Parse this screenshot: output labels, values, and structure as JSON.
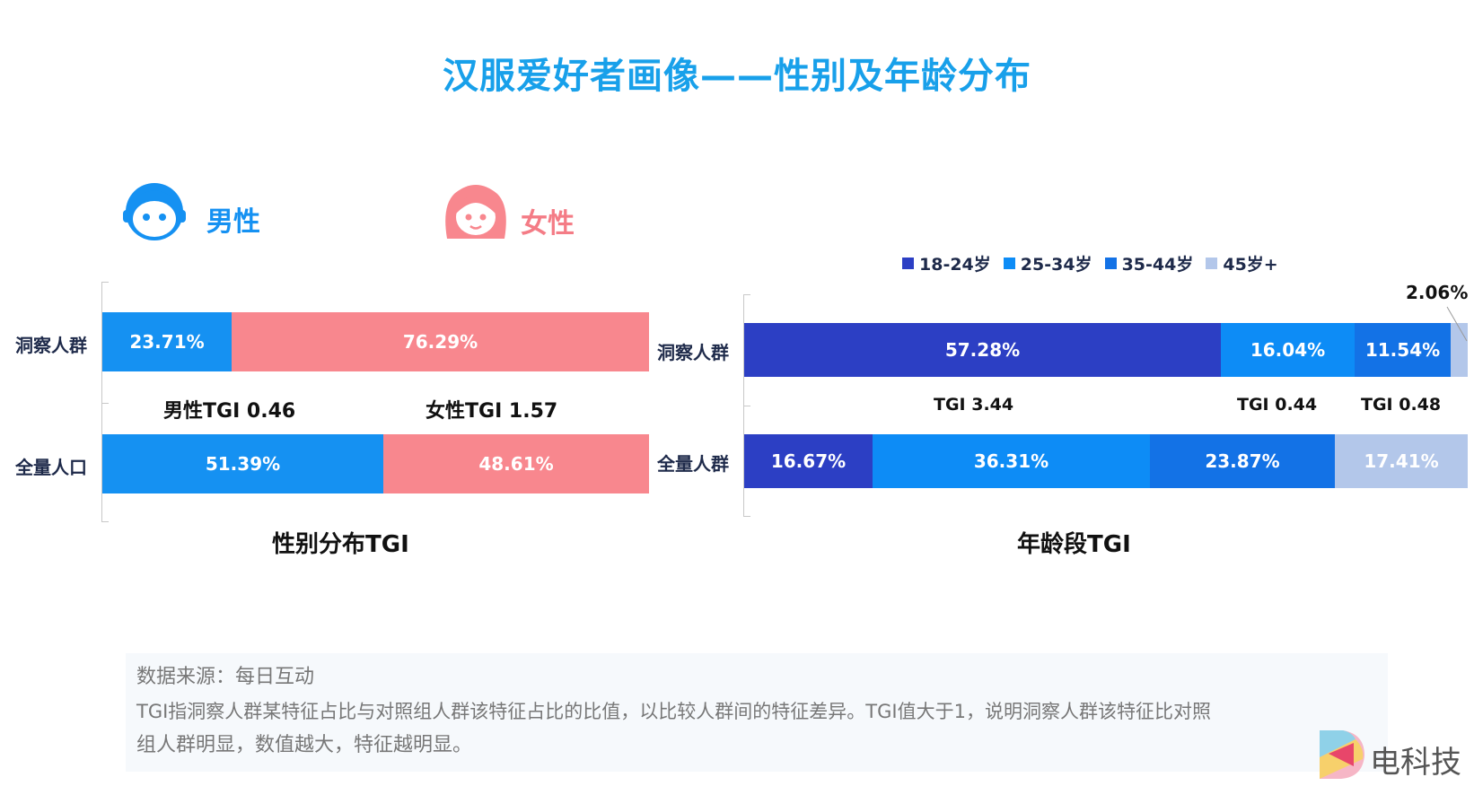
{
  "title": "汉服爱好者画像——性别及年龄分布",
  "gender_header": {
    "male_label": "男性",
    "female_label": "女性"
  },
  "legend": [
    {
      "label": "18-24岁",
      "color": "#2c3fc4"
    },
    {
      "label": "25-34岁",
      "color": "#0d8cf6"
    },
    {
      "label": "35-44岁",
      "color": "#1372e6"
    },
    {
      "label": "45岁+",
      "color": "#b3c7ea"
    }
  ],
  "chart_data": [
    {
      "type": "bar",
      "stacked": true,
      "orientation": "horizontal",
      "title": "性别分布TGI",
      "categories": [
        "洞察人群",
        "全量人口"
      ],
      "series": [
        {
          "name": "男性",
          "values": [
            23.71,
            51.39
          ],
          "labels": [
            "23.71%",
            "51.39%"
          ],
          "color": "#1591f2"
        },
        {
          "name": "女性",
          "values": [
            76.29,
            48.61
          ],
          "labels": [
            "76.29%",
            "48.61%"
          ],
          "color": "#f8878e"
        }
      ],
      "tgi": [
        "男性TGI 0.46",
        "女性TGI 1.57"
      ]
    },
    {
      "type": "bar",
      "stacked": true,
      "orientation": "horizontal",
      "title": "年龄段TGI",
      "categories": [
        "洞察人群",
        "全量人群"
      ],
      "series": [
        {
          "name": "18-24岁",
          "values": [
            57.28,
            16.67
          ],
          "labels": [
            "57.28%",
            "16.67%"
          ],
          "color": "#2c3fc4"
        },
        {
          "name": "25-34岁",
          "values": [
            16.04,
            36.31
          ],
          "labels": [
            "16.04%",
            "36.31%"
          ],
          "color": "#0d8cf6"
        },
        {
          "name": "35-44岁",
          "values": [
            11.54,
            23.87
          ],
          "labels": [
            "11.54%",
            "23.87%"
          ],
          "color": "#1372e6"
        },
        {
          "name": "45岁+",
          "values": [
            2.06,
            17.41
          ],
          "labels": [
            "2.06%",
            "17.41%"
          ],
          "color": "#b3c7ea"
        }
      ],
      "tgi": [
        "TGI 3.44",
        "TGI 0.44",
        "TGI 0.48"
      ]
    }
  ],
  "footer": {
    "source": "数据来源：每日互动",
    "note_line1": "TGI指洞察人群某特征占比与对照组人群该特征占比的比值，以比较人群间的特征差异。TGI值大于1，说明洞察人群该特征比对照",
    "note_line2": "组人群明显，数值越大，特征越明显。"
  },
  "brand": {
    "text": "电科技"
  }
}
